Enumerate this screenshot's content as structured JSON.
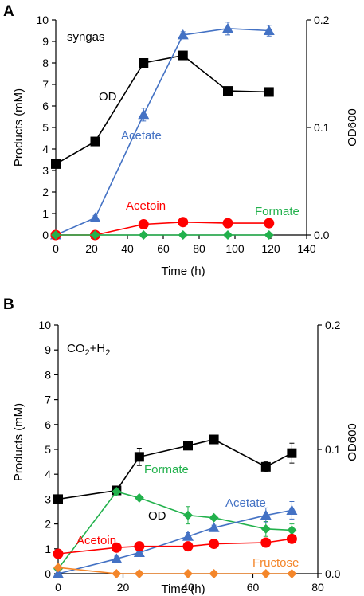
{
  "chart_data": [
    {
      "type": "line",
      "panel": "A",
      "condition_label": "syngas",
      "xlabel": "Time (h)",
      "ylabel": "Products (mM)",
      "y2label": "OD600",
      "xlim": [
        0,
        140
      ],
      "xticks": [
        0,
        20,
        40,
        60,
        80,
        100,
        120,
        140
      ],
      "ylim": [
        0,
        10
      ],
      "yticks": [
        0,
        1,
        2,
        3,
        4,
        5,
        6,
        7,
        8,
        9,
        10
      ],
      "y2lim": [
        0,
        0.2
      ],
      "y2ticks": [
        "0.0",
        "0.1",
        "0.2"
      ],
      "grid": false,
      "series": [
        {
          "name": "OD",
          "axis": "right",
          "marker": "square",
          "color": "#000000",
          "x": [
            0,
            22,
            49,
            71,
            96,
            119
          ],
          "y": [
            0.066,
            0.087,
            0.16,
            0.167,
            0.134,
            0.133
          ],
          "err": [
            0,
            0,
            0,
            0,
            0,
            0
          ]
        },
        {
          "name": "Acetate",
          "axis": "left",
          "marker": "triangle",
          "color": "#4472C4",
          "x": [
            0,
            22,
            49,
            71,
            96,
            119
          ],
          "y": [
            0.0,
            0.8,
            5.6,
            9.3,
            9.6,
            9.5
          ],
          "err": [
            0,
            0.1,
            0.3,
            0.15,
            0.3,
            0.25
          ]
        },
        {
          "name": "Acetoin",
          "axis": "left",
          "marker": "circle",
          "color": "#FF0000",
          "x": [
            0,
            22,
            49,
            71,
            96,
            119
          ],
          "y": [
            0.0,
            0.0,
            0.5,
            0.6,
            0.55,
            0.55
          ],
          "err": [
            0,
            0,
            0,
            0,
            0,
            0
          ]
        },
        {
          "name": "Formate",
          "axis": "left",
          "marker": "diamond",
          "color": "#22B14C",
          "x": [
            0,
            22,
            49,
            71,
            96,
            119
          ],
          "y": [
            0.0,
            0.0,
            0.0,
            0.0,
            0.0,
            0.0
          ],
          "err": [
            0,
            0,
            0,
            0,
            0,
            0
          ]
        }
      ]
    },
    {
      "type": "line",
      "panel": "B",
      "condition_label": "CO2+H2",
      "xlabel": "Time (h)",
      "ylabel": "Products (mM)",
      "y2label": "OD600",
      "xlim": [
        0,
        80
      ],
      "xticks": [
        0,
        20,
        40,
        60,
        80
      ],
      "ylim": [
        0,
        10
      ],
      "yticks": [
        0,
        1,
        2,
        3,
        4,
        5,
        6,
        7,
        8,
        9,
        10
      ],
      "y2lim": [
        0,
        0.2
      ],
      "y2ticks": [
        "0.0",
        "0.1",
        "0.2"
      ],
      "grid": false,
      "series": [
        {
          "name": "OD",
          "axis": "right",
          "marker": "square",
          "color": "#000000",
          "x": [
            0,
            18,
            25,
            40,
            48,
            64,
            72
          ],
          "y": [
            0.06,
            0.067,
            0.094,
            0.103,
            0.108,
            0.086,
            0.097
          ],
          "err": [
            0,
            0,
            0.007,
            0,
            0,
            0.004,
            0.008
          ]
        },
        {
          "name": "Formate",
          "axis": "left",
          "marker": "diamond",
          "color": "#22B14C",
          "x": [
            0,
            18,
            25,
            40,
            48,
            64,
            72
          ],
          "y": [
            0.2,
            3.3,
            3.05,
            2.35,
            2.25,
            1.8,
            1.75
          ],
          "err": [
            0,
            0,
            0,
            0.35,
            0,
            0.3,
            0.25
          ]
        },
        {
          "name": "Acetate",
          "axis": "left",
          "marker": "triangle",
          "color": "#4472C4",
          "x": [
            0,
            18,
            25,
            40,
            48,
            64,
            72
          ],
          "y": [
            0.0,
            0.6,
            0.85,
            1.5,
            1.85,
            2.35,
            2.55
          ],
          "err": [
            0,
            0.1,
            0,
            0.15,
            0.1,
            0.3,
            0.35
          ]
        },
        {
          "name": "Acetoin",
          "axis": "left",
          "marker": "circle",
          "color": "#FF0000",
          "x": [
            0,
            18,
            25,
            40,
            48,
            64,
            72
          ],
          "y": [
            0.8,
            1.05,
            1.1,
            1.1,
            1.2,
            1.25,
            1.4
          ],
          "err": [
            0.1,
            0,
            0,
            0,
            0,
            0,
            0.1
          ]
        },
        {
          "name": "Fructose",
          "axis": "left",
          "marker": "diamond",
          "color": "#F4862A",
          "x": [
            0,
            18,
            25,
            40,
            48,
            64,
            72
          ],
          "y": [
            0.25,
            0.0,
            0.0,
            0.0,
            0.0,
            0.0,
            0.0
          ],
          "err": [
            0,
            0,
            0,
            0,
            0,
            0,
            0
          ]
        }
      ]
    }
  ]
}
